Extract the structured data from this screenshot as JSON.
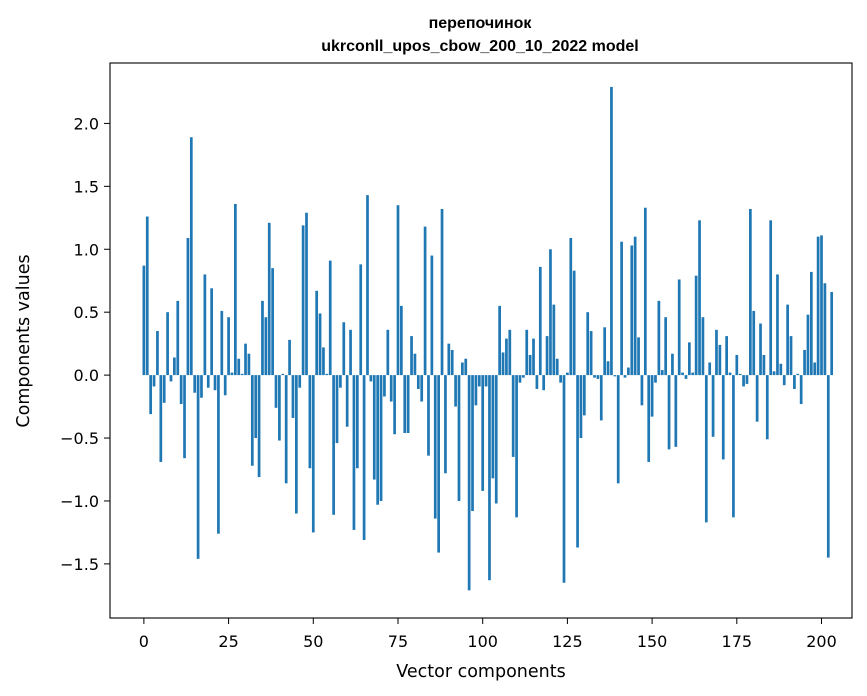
{
  "chart_data": {
    "type": "bar",
    "title": "перепочинок",
    "subtitle": "ukrconll_upos_cbow_200_10_2022 model",
    "xlabel": "Vector components",
    "ylabel": "Components values",
    "xlim": [
      -10,
      209
    ],
    "ylim": [
      -1.93,
      2.48
    ],
    "xticks": [
      0,
      25,
      50,
      75,
      100,
      125,
      150,
      175,
      200
    ],
    "yticks": [
      -1.5,
      -1.0,
      -0.5,
      0.0,
      0.5,
      1.0,
      1.5,
      2.0
    ],
    "ytick_labels": [
      "−1.5",
      "−1.0",
      "−0.5",
      "0.0",
      "0.5",
      "1.0",
      "1.5",
      "2.0"
    ],
    "grid": false,
    "bar_color": "#1f77b4",
    "x_start": 0,
    "values": [
      0.87,
      1.26,
      -0.31,
      -0.09,
      0.35,
      -0.69,
      -0.22,
      0.5,
      -0.05,
      0.14,
      0.59,
      -0.23,
      -0.66,
      1.09,
      1.89,
      -0.14,
      -1.46,
      -0.18,
      0.8,
      -0.1,
      0.69,
      -0.12,
      -1.26,
      0.51,
      -0.16,
      0.46,
      0.02,
      1.36,
      0.13,
      0.01,
      0.25,
      0.17,
      -0.72,
      -0.5,
      -0.81,
      0.59,
      0.46,
      1.21,
      0.85,
      -0.26,
      -0.52,
      0.01,
      -0.86,
      0.28,
      -0.34,
      -1.1,
      -0.1,
      1.19,
      1.29,
      -0.74,
      -1.25,
      0.67,
      0.49,
      0.22,
      0.01,
      0.91,
      -1.11,
      -0.54,
      -0.1,
      0.42,
      -0.41,
      0.36,
      -1.23,
      -0.74,
      0.88,
      -1.31,
      1.43,
      -0.05,
      -0.83,
      -1.03,
      -1.0,
      -0.17,
      0.36,
      -0.21,
      -0.47,
      1.35,
      0.55,
      -0.46,
      -0.46,
      0.31,
      0.17,
      -0.11,
      -0.21,
      1.18,
      -0.64,
      0.95,
      -1.14,
      -1.41,
      1.32,
      -0.78,
      0.25,
      0.2,
      -0.25,
      -1.0,
      0.1,
      0.13,
      -1.71,
      -1.08,
      -0.24,
      -0.09,
      -0.92,
      -0.09,
      -1.63,
      -0.82,
      -1.02,
      0.55,
      0.18,
      0.29,
      0.36,
      -0.65,
      -1.13,
      -0.06,
      -0.02,
      0.36,
      0.16,
      0.29,
      -0.11,
      0.86,
      -0.12,
      0.31,
      1.0,
      0.56,
      0.13,
      -0.06,
      -1.65,
      0.02,
      1.09,
      0.83,
      -1.37,
      -0.5,
      -0.32,
      0.5,
      0.35,
      -0.02,
      -0.03,
      -0.36,
      0.38,
      0.11,
      2.29,
      -0.01,
      -0.86,
      1.06,
      -0.02,
      0.06,
      1.03,
      1.1,
      0.3,
      -0.24,
      1.33,
      -0.69,
      -0.33,
      -0.06,
      0.59,
      0.04,
      0.46,
      -0.59,
      0.17,
      -0.57,
      0.76,
      0.02,
      -0.03,
      0.26,
      0.02,
      0.79,
      1.23,
      0.46,
      -1.17,
      0.1,
      -0.49,
      0.36,
      0.24,
      -0.67,
      0.31,
      0.02,
      -1.13,
      0.16,
      0.01,
      -0.09,
      -0.07,
      1.32,
      0.51,
      -0.37,
      0.41,
      0.16,
      -0.51,
      1.23,
      0.03,
      0.8,
      0.09,
      -0.08,
      0.56,
      0.31,
      -0.11,
      0.01,
      -0.23,
      0.2,
      0.48,
      0.82,
      0.1,
      1.1,
      1.11,
      0.73,
      -1.45,
      0.66
    ]
  }
}
